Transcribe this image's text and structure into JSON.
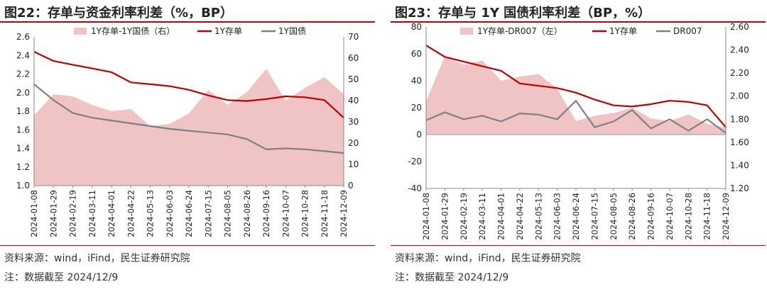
{
  "chart_data": [
    {
      "type": "line",
      "title": "图22：存单与资金利率利差（%，BP）",
      "source": "资料来源：wind，iFind，民生证券研究院",
      "note": "注：数据截至 2024/12/9",
      "categories": [
        "2024-01-08",
        "2024-01-29",
        "2024-02-19",
        "2024-03-11",
        "2024-04-01",
        "2024-04-22",
        "2024-05-13",
        "2024-06-03",
        "2024-06-24",
        "2024-07-15",
        "2024-08-05",
        "2024-08-26",
        "2024-09-16",
        "2024-10-07",
        "2024-10-28",
        "2024-11-18",
        "2024-12-09"
      ],
      "left_axis": {
        "ylim": [
          1.0,
          2.6
        ],
        "ticks": [
          "1.0",
          "1.2",
          "1.4",
          "1.6",
          "1.8",
          "2.0",
          "2.2",
          "2.4",
          "2.6"
        ]
      },
      "right_axis": {
        "ylim": [
          0,
          70
        ],
        "ticks": [
          "0",
          "10",
          "20",
          "30",
          "40",
          "50",
          "60",
          "70"
        ]
      },
      "legend": [
        "1Y存单-1Y国债（右）",
        "1Y存单",
        "1Y国债"
      ],
      "series": [
        {
          "name": "1Y存单-1Y国债（右）",
          "kind": "area",
          "axis": "right",
          "color": "#f0c4c4",
          "values": [
            33,
            43,
            42,
            38,
            35,
            36,
            28,
            29,
            34,
            45,
            38,
            44,
            55,
            40,
            46,
            51,
            43
          ]
        },
        {
          "name": "1Y存单",
          "kind": "line",
          "axis": "left",
          "color": "#c00000",
          "values": [
            2.44,
            2.34,
            2.3,
            2.26,
            2.22,
            2.11,
            2.09,
            2.07,
            2.03,
            1.97,
            1.92,
            1.91,
            1.93,
            1.96,
            1.95,
            1.92,
            1.73
          ]
        },
        {
          "name": "1Y国债",
          "kind": "line",
          "axis": "left",
          "color": "#808080",
          "values": [
            2.09,
            1.92,
            1.78,
            1.73,
            1.7,
            1.67,
            1.64,
            1.61,
            1.59,
            1.57,
            1.55,
            1.5,
            1.39,
            1.4,
            1.39,
            1.37,
            1.35
          ]
        }
      ]
    },
    {
      "type": "line",
      "title": "图23：存单与 1Y 国债利率利差（BP，%）",
      "source": "资料来源：wind，iFind，民生证券研究院",
      "note": "注：数据截至 2024/12/9",
      "categories": [
        "2024-01-08",
        "2024-01-29",
        "2024-02-19",
        "2024-03-11",
        "2024-04-01",
        "2024-04-22",
        "2024-05-13",
        "2024-06-03",
        "2024-06-24",
        "2024-07-15",
        "2024-08-05",
        "2024-08-26",
        "2024-09-16",
        "2024-10-07",
        "2024-10-28",
        "2024-11-18",
        "2024-12-09"
      ],
      "left_axis": {
        "ylim": [
          -40,
          80
        ],
        "ticks": [
          "-40",
          "-20",
          "0",
          "20",
          "40",
          "60",
          "80"
        ]
      },
      "right_axis": {
        "ylim": [
          1.2,
          2.6
        ],
        "ticks": [
          "1.20",
          "1.40",
          "1.60",
          "1.80",
          "2.00",
          "2.20",
          "2.40",
          "2.60"
        ]
      },
      "legend": [
        "1Y存单-DR007（左）",
        "1Y存单",
        "DR007"
      ],
      "series": [
        {
          "name": "1Y存单-DR007（左）",
          "kind": "area",
          "axis": "left",
          "color": "#f0c4c4",
          "values": [
            25,
            58,
            52,
            55,
            40,
            43,
            45,
            34,
            10,
            14,
            16,
            20,
            12,
            10,
            15,
            8,
            5
          ]
        },
        {
          "name": "1Y存单",
          "kind": "line",
          "axis": "right",
          "color": "#c00000",
          "values": [
            2.44,
            2.34,
            2.3,
            2.26,
            2.22,
            2.11,
            2.09,
            2.07,
            2.03,
            1.97,
            1.92,
            1.91,
            1.93,
            1.96,
            1.95,
            1.92,
            1.73
          ]
        },
        {
          "name": "DR007",
          "kind": "line",
          "axis": "right",
          "color": "#808080",
          "values": [
            1.79,
            1.86,
            1.8,
            1.83,
            1.78,
            1.85,
            1.84,
            1.8,
            1.96,
            1.73,
            1.78,
            1.88,
            1.72,
            1.8,
            1.7,
            1.8,
            1.68
          ]
        }
      ]
    }
  ]
}
